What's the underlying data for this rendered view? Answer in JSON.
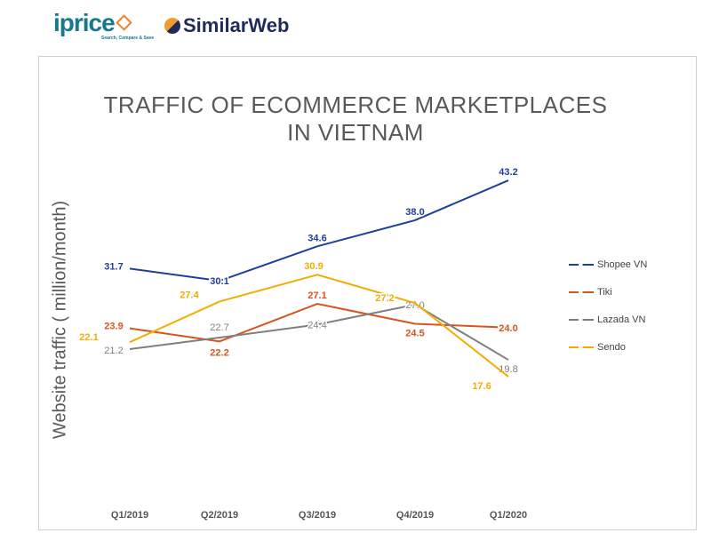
{
  "logos": {
    "iprice": "iprice",
    "iprice_tagline": "Search, Compare & Save",
    "similarweb": "SimilarWeb"
  },
  "chart_data": {
    "type": "line",
    "title": "TRAFFIC OF ECOMMERCE MARKETPLACES IN VIETNAM",
    "title_lines": [
      "TRAFFIC OF ECOMMERCE MARKETPLACES",
      "IN VIETNAM"
    ],
    "ylabel": "Website traffic ( million/month)",
    "xlabel": "",
    "categories": [
      "Q1/2019",
      "Q2/2019",
      "Q3/2019",
      "Q4/2019",
      "Q1/2020"
    ],
    "ylim": [
      0,
      45
    ],
    "grid": false,
    "legend_placement": "right",
    "series": [
      {
        "name": "Shopee VN",
        "color": "#1f3f9c",
        "values": [
          31.7,
          30.1,
          34.6,
          38.0,
          43.2
        ]
      },
      {
        "name": "Tiki",
        "color": "#d9531e",
        "values": [
          23.9,
          22.2,
          27.1,
          24.5,
          24.0
        ]
      },
      {
        "name": "Lazada VN",
        "color": "#7f7f7f",
        "values": [
          21.2,
          22.7,
          24.4,
          27.0,
          19.8
        ]
      },
      {
        "name": "Sendo",
        "color": "#f2ad00",
        "values": [
          22.1,
          27.4,
          30.9,
          27.2,
          17.6
        ]
      }
    ]
  }
}
